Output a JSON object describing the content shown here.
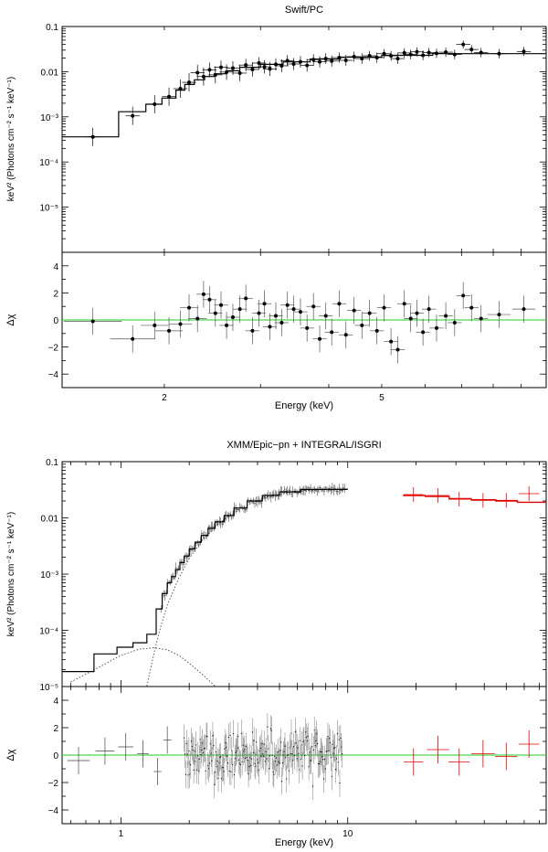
{
  "colors": {
    "model": "#000000",
    "data": "#000000",
    "isgri": "#e00000",
    "zero_line": "#22cc22",
    "component": "#444444"
  },
  "chart_data": [
    {
      "type": "scatter",
      "title": "Swift/PC",
      "xlabel": "Energy (keV)",
      "ylabel_top": "keV² (Photons cm⁻² s⁻¹ keV⁻¹)",
      "ylabel_bottom": "Δχ",
      "xscale": "log",
      "xlim": [
        1.3,
        10.0
      ],
      "xticks": [
        {
          "value": 2,
          "label": "2"
        },
        {
          "value": 5,
          "label": "5"
        }
      ],
      "spectrum": {
        "yscale": "log",
        "ylim": [
          1e-06,
          0.1
        ],
        "yticks": [
          {
            "value": 0.1,
            "label": "0.1"
          },
          {
            "value": 0.01,
            "label": "0.01"
          },
          {
            "value": 0.001,
            "label": "10⁻³"
          },
          {
            "value": 0.0001,
            "label": "10⁻⁴"
          },
          {
            "value": 1e-05,
            "label": "10⁻⁵"
          }
        ],
        "model_steps": [
          [
            1.3,
            1.65,
            0.00036
          ],
          [
            1.65,
            1.85,
            0.0013
          ],
          [
            1.85,
            1.98,
            0.0019
          ],
          [
            1.98,
            2.1,
            0.0026
          ],
          [
            2.1,
            2.18,
            0.0039
          ],
          [
            2.18,
            2.27,
            0.0052
          ],
          [
            2.27,
            2.37,
            0.0066
          ],
          [
            2.37,
            2.47,
            0.0078
          ],
          [
            2.47,
            2.6,
            0.009
          ],
          [
            2.6,
            2.75,
            0.0105
          ],
          [
            2.75,
            3.0,
            0.0125
          ],
          [
            3.0,
            3.3,
            0.0145
          ],
          [
            3.3,
            3.7,
            0.0165
          ],
          [
            3.7,
            4.2,
            0.019
          ],
          [
            4.2,
            5.0,
            0.021
          ],
          [
            5.0,
            6.2,
            0.023
          ],
          [
            6.2,
            10.0,
            0.025
          ]
        ],
        "points": [
          [
            1.48,
            0.00036
          ],
          [
            1.75,
            0.00105
          ],
          [
            1.92,
            0.0019
          ],
          [
            2.04,
            0.0028
          ],
          [
            2.14,
            0.0042
          ],
          [
            2.22,
            0.0058
          ],
          [
            2.3,
            0.0095
          ],
          [
            2.36,
            0.0078
          ],
          [
            2.42,
            0.011
          ],
          [
            2.48,
            0.0085
          ],
          [
            2.54,
            0.0125
          ],
          [
            2.6,
            0.0098
          ],
          [
            2.67,
            0.012
          ],
          [
            2.75,
            0.0093
          ],
          [
            2.82,
            0.014
          ],
          [
            2.9,
            0.0112
          ],
          [
            2.98,
            0.0155
          ],
          [
            3.05,
            0.0128
          ],
          [
            3.12,
            0.0115
          ],
          [
            3.2,
            0.0145
          ],
          [
            3.28,
            0.0135
          ],
          [
            3.36,
            0.0175
          ],
          [
            3.45,
            0.0148
          ],
          [
            3.55,
            0.0165
          ],
          [
            3.65,
            0.0138
          ],
          [
            3.75,
            0.0185
          ],
          [
            3.85,
            0.0165
          ],
          [
            3.95,
            0.0195
          ],
          [
            4.05,
            0.0172
          ],
          [
            4.18,
            0.0205
          ],
          [
            4.3,
            0.0178
          ],
          [
            4.45,
            0.0215
          ],
          [
            4.6,
            0.0195
          ],
          [
            4.75,
            0.0225
          ],
          [
            4.9,
            0.0205
          ],
          [
            5.05,
            0.025
          ],
          [
            5.2,
            0.0225
          ],
          [
            5.35,
            0.0195
          ],
          [
            5.5,
            0.026
          ],
          [
            5.65,
            0.024
          ],
          [
            5.8,
            0.0275
          ],
          [
            5.95,
            0.023
          ],
          [
            6.1,
            0.0265
          ],
          [
            6.3,
            0.0255
          ],
          [
            6.55,
            0.027
          ],
          [
            6.8,
            0.024
          ],
          [
            7.05,
            0.04
          ],
          [
            7.3,
            0.031
          ],
          [
            7.6,
            0.0265
          ],
          [
            8.2,
            0.025
          ],
          [
            9.1,
            0.028
          ]
        ]
      },
      "residuals": {
        "ylim": [
          -5,
          5
        ],
        "yticks": [
          {
            "value": 4,
            "label": "4"
          },
          {
            "value": 2,
            "label": "2"
          },
          {
            "value": 0,
            "label": "0"
          },
          {
            "value": -2,
            "label": "−2"
          },
          {
            "value": -4,
            "label": "−4"
          }
        ],
        "points": [
          [
            1.48,
            -0.1,
            0.13
          ],
          [
            1.75,
            -1.4,
            0.1
          ],
          [
            1.92,
            -0.4,
            0.06
          ],
          [
            2.04,
            -0.8,
            0.06
          ],
          [
            2.14,
            -0.3,
            0.05
          ],
          [
            2.22,
            0.9,
            0.04
          ],
          [
            2.3,
            0.1,
            0.04
          ],
          [
            2.36,
            1.9,
            0.03
          ],
          [
            2.42,
            1.5,
            0.03
          ],
          [
            2.48,
            0.5,
            0.03
          ],
          [
            2.54,
            1.1,
            0.03
          ],
          [
            2.6,
            -0.4,
            0.03
          ],
          [
            2.67,
            0.2,
            0.03
          ],
          [
            2.75,
            0.8,
            0.03
          ],
          [
            2.82,
            1.6,
            0.03
          ],
          [
            2.9,
            -0.8,
            0.03
          ],
          [
            2.98,
            0.5,
            0.03
          ],
          [
            3.05,
            1.2,
            0.03
          ],
          [
            3.12,
            -0.5,
            0.03
          ],
          [
            3.2,
            0.3,
            0.03
          ],
          [
            3.28,
            -0.2,
            0.03
          ],
          [
            3.36,
            1.1,
            0.03
          ],
          [
            3.45,
            0.8,
            0.03
          ],
          [
            3.55,
            0.6,
            0.03
          ],
          [
            3.65,
            -0.6,
            0.03
          ],
          [
            3.75,
            1.0,
            0.03
          ],
          [
            3.85,
            -1.4,
            0.03
          ],
          [
            3.95,
            0.3,
            0.03
          ],
          [
            4.05,
            -0.9,
            0.03
          ],
          [
            4.18,
            1.2,
            0.03
          ],
          [
            4.3,
            -1.1,
            0.03
          ],
          [
            4.45,
            0.7,
            0.03
          ],
          [
            4.6,
            -0.4,
            0.03
          ],
          [
            4.75,
            0.5,
            0.03
          ],
          [
            4.9,
            -0.8,
            0.03
          ],
          [
            5.05,
            0.9,
            0.03
          ],
          [
            5.2,
            -1.6,
            0.03
          ],
          [
            5.35,
            -2.2,
            0.03
          ],
          [
            5.5,
            1.2,
            0.03
          ],
          [
            5.65,
            0.1,
            0.03
          ],
          [
            5.8,
            0.5,
            0.03
          ],
          [
            5.95,
            -0.9,
            0.03
          ],
          [
            6.1,
            0.8,
            0.03
          ],
          [
            6.3,
            -0.6,
            0.03
          ],
          [
            6.55,
            0.3,
            0.03
          ],
          [
            6.8,
            -0.2,
            0.03
          ],
          [
            7.05,
            1.8,
            0.03
          ],
          [
            7.3,
            0.9,
            0.03
          ],
          [
            7.6,
            0.1,
            0.03
          ],
          [
            8.2,
            0.4,
            0.05
          ],
          [
            9.1,
            0.8,
            0.05
          ]
        ]
      }
    },
    {
      "type": "scatter",
      "title": "XMM/Epic−pn + INTEGRAL/ISGRI",
      "xlabel": "Energy (keV)",
      "ylabel_top": "keV² (Photons cm⁻² s⁻¹ keV⁻¹)",
      "ylabel_bottom": "Δχ",
      "xscale": "log",
      "xlim": [
        0.55,
        75.0
      ],
      "xticks": [
        {
          "value": 1,
          "label": "1"
        },
        {
          "value": 10,
          "label": "10"
        }
      ],
      "spectrum": {
        "yscale": "log",
        "ylim": [
          1e-05,
          0.1
        ],
        "yticks": [
          {
            "value": 0.1,
            "label": "0.1"
          },
          {
            "value": 0.01,
            "label": "0.01"
          },
          {
            "value": 0.001,
            "label": "10⁻³"
          },
          {
            "value": 0.0001,
            "label": "10⁻⁴"
          },
          {
            "value": 1e-05,
            "label": "10⁻⁵"
          }
        ],
        "model_steps": [
          [
            0.55,
            0.76,
            1.85e-05
          ],
          [
            0.76,
            0.96,
            3.8e-05
          ],
          [
            0.96,
            1.13,
            5e-05
          ],
          [
            1.13,
            1.3,
            6e-05
          ],
          [
            1.3,
            1.43,
            8.5e-05
          ],
          [
            1.43,
            1.52,
            0.00024
          ],
          [
            1.52,
            1.6,
            0.00045
          ],
          [
            1.6,
            1.67,
            0.0007
          ],
          [
            1.67,
            1.74,
            0.0009
          ],
          [
            1.74,
            1.82,
            0.0012
          ],
          [
            1.82,
            1.9,
            0.0016
          ],
          [
            1.9,
            2.0,
            0.0021
          ],
          [
            2.0,
            2.12,
            0.0028
          ],
          [
            2.12,
            2.26,
            0.0037
          ],
          [
            2.26,
            2.42,
            0.0049
          ],
          [
            2.42,
            2.6,
            0.0065
          ],
          [
            2.6,
            2.85,
            0.0085
          ],
          [
            2.85,
            3.15,
            0.011
          ],
          [
            3.15,
            3.6,
            0.015
          ],
          [
            3.6,
            4.2,
            0.02
          ],
          [
            4.2,
            5.0,
            0.025
          ],
          [
            5.0,
            6.2,
            0.029
          ],
          [
            6.2,
            10.0,
            0.032
          ]
        ],
        "isgri_steps": [
          [
            17.5,
            22.0,
            0.025
          ],
          [
            22.0,
            28.0,
            0.024
          ],
          [
            28.0,
            35.0,
            0.022
          ],
          [
            35.0,
            45.0,
            0.021
          ],
          [
            45.0,
            56.0,
            0.02
          ],
          [
            56.0,
            75.0,
            0.019
          ]
        ],
        "isgri_points": [
          [
            19.5,
            0.026,
            2.0
          ],
          [
            25.0,
            0.025,
            3.0
          ],
          [
            31.0,
            0.0215,
            3.5
          ],
          [
            39.5,
            0.0205,
            5.0
          ],
          [
            50.0,
            0.0205,
            6.0
          ],
          [
            63.0,
            0.027,
            7.0
          ]
        ],
        "component_soft": [
          [
            0.6,
            1.2e-05
          ],
          [
            0.8,
            2.2e-05
          ],
          [
            1.0,
            3.6e-05
          ],
          [
            1.2,
            4.6e-05
          ],
          [
            1.4,
            4.9e-05
          ],
          [
            1.6,
            4.5e-05
          ],
          [
            1.8,
            3.6e-05
          ],
          [
            2.0,
            2.6e-05
          ],
          [
            2.3,
            1.6e-05
          ],
          [
            2.6,
            1.02e-05
          ]
        ],
        "component_hard": [
          [
            1.3,
            1.02e-05
          ],
          [
            1.4,
            4e-05
          ],
          [
            1.5,
            0.00012
          ],
          [
            1.6,
            0.00028
          ],
          [
            1.8,
            0.00085
          ],
          [
            2.0,
            0.0019
          ],
          [
            2.3,
            0.0042
          ],
          [
            2.6,
            0.007
          ],
          [
            3.0,
            0.011
          ],
          [
            3.6,
            0.017
          ],
          [
            4.5,
            0.024
          ],
          [
            6.0,
            0.03
          ],
          [
            10.0,
            0.033
          ]
        ]
      },
      "residuals": {
        "ylim": [
          -5,
          5
        ],
        "yticks": [
          {
            "value": 4,
            "label": "4"
          },
          {
            "value": 2,
            "label": "2"
          },
          {
            "value": 0,
            "label": "0"
          },
          {
            "value": -2,
            "label": "−2"
          },
          {
            "value": -4,
            "label": "−4"
          }
        ],
        "pn_points": [
          [
            0.65,
            -0.4,
            0.12
          ],
          [
            0.85,
            0.3,
            0.1
          ],
          [
            1.05,
            0.6,
            0.08
          ],
          [
            1.25,
            0.1,
            0.06
          ],
          [
            1.45,
            -1.2,
            0.04
          ],
          [
            1.6,
            1.1,
            0.04
          ]
        ],
        "isgri_points": [
          [
            19.5,
            -0.5,
            2.0
          ],
          [
            25.0,
            0.4,
            3.0
          ],
          [
            31.0,
            -0.5,
            3.5
          ],
          [
            39.5,
            0.1,
            5.0
          ],
          [
            50.0,
            -0.1,
            6.0
          ],
          [
            63.0,
            0.8,
            7.0
          ]
        ]
      }
    }
  ]
}
